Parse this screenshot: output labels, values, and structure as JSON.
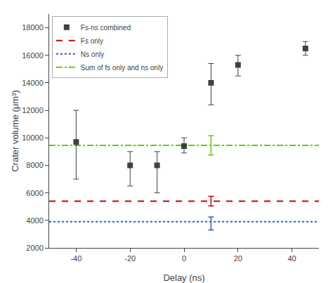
{
  "chart_data": {
    "type": "scatter",
    "xlabel": "Delay (ns)",
    "ylabel": "Crater volume (μm³)",
    "xlim": [
      -50,
      50
    ],
    "ylim": [
      2000,
      19000
    ],
    "xticks": [
      -40,
      -20,
      0,
      20,
      40
    ],
    "yticks": [
      2000,
      4000,
      6000,
      8000,
      10000,
      12000,
      14000,
      16000,
      18000
    ],
    "grid": false,
    "legend": "upper left",
    "series": [
      {
        "name": "Fs-ns combined",
        "type": "scatter",
        "color": "#404040",
        "marker": "square",
        "x": [
          -40,
          -20,
          -10,
          0,
          10,
          20,
          45
        ],
        "values": [
          9700,
          8000,
          8000,
          9400,
          14000,
          15300,
          16500
        ],
        "error_low": [
          2700,
          1500,
          2000,
          500,
          1600,
          800,
          500
        ],
        "error_high": [
          2300,
          1000,
          1000,
          600,
          1400,
          700,
          500
        ]
      },
      {
        "name": "Fs only",
        "type": "hline",
        "color": "#cc0000",
        "line_style": "dashed",
        "x": [
          10
        ],
        "values": [
          5400
        ],
        "error_low": [
          350
        ],
        "error_high": [
          350
        ]
      },
      {
        "name": "Ns only",
        "type": "hline",
        "color": "#3355cc",
        "line_style": "dotted",
        "x": [
          10
        ],
        "values": [
          3900
        ],
        "error_low": [
          600
        ],
        "error_high": [
          350
        ]
      },
      {
        "name": "Sum of fs only and ns only",
        "type": "hline",
        "color": "#66cc00",
        "line_style": "dashdot",
        "x": [
          10
        ],
        "values": [
          9450
        ],
        "error_low": [
          700
        ],
        "error_high": [
          700
        ]
      }
    ]
  }
}
